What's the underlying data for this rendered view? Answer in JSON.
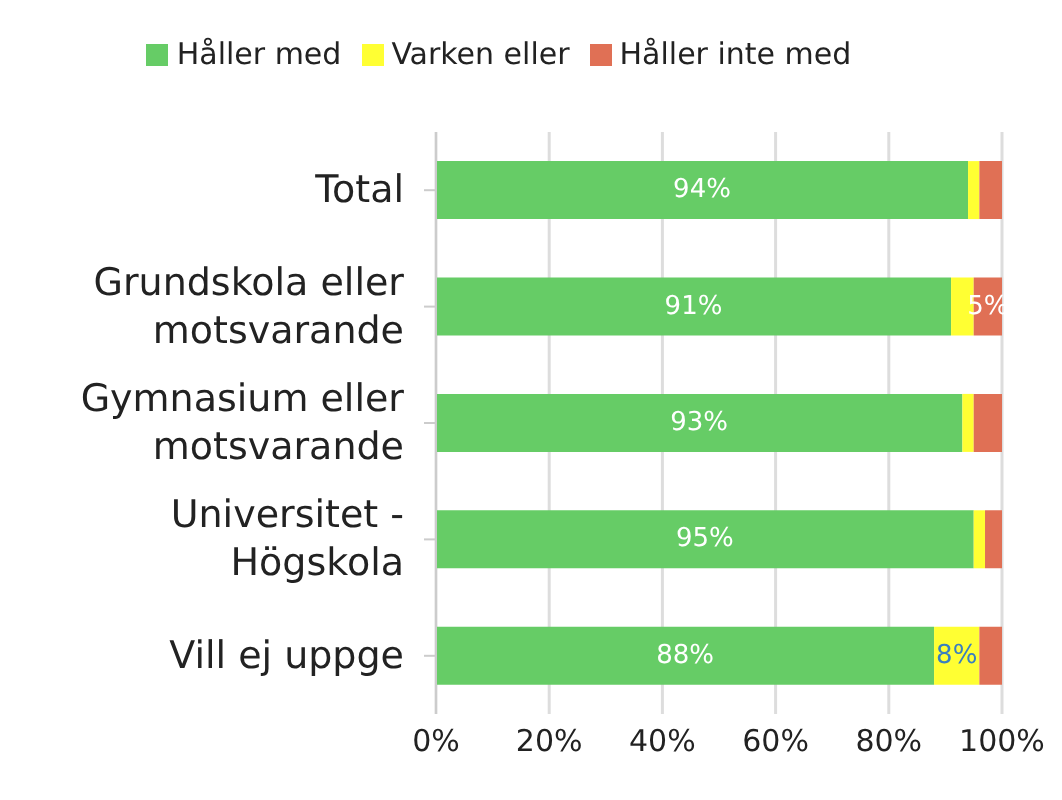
{
  "chart_data": {
    "type": "bar",
    "orientation": "horizontal",
    "stacked": true,
    "categories": [
      "Total",
      "Grundskola eller motsvarande",
      "Gymnasium eller motsvarande",
      "Universitet - Högskola",
      "Vill ej uppge"
    ],
    "series": [
      {
        "name": "Håller med",
        "color": "#66cc66",
        "values": [
          94,
          91,
          93,
          95,
          88
        ],
        "value_labels": [
          "94%",
          "91%",
          "93%",
          "95%",
          "88%"
        ]
      },
      {
        "name": "Varken eller",
        "color": "#ffff33",
        "values": [
          2,
          4,
          2,
          2,
          8
        ],
        "value_labels": [
          null,
          null,
          null,
          null,
          "8%"
        ]
      },
      {
        "name": "Håller inte med",
        "color": "#e07055",
        "values": [
          4,
          5,
          5,
          3,
          4
        ],
        "value_labels": [
          null,
          "5%",
          null,
          null,
          null
        ]
      }
    ],
    "xlim": [
      0,
      100
    ],
    "xticks": [
      {
        "value": 0,
        "label": "0%"
      },
      {
        "value": 20,
        "label": "20%"
      },
      {
        "value": 40,
        "label": "40%"
      },
      {
        "value": 60,
        "label": "60%"
      },
      {
        "value": 80,
        "label": "80%"
      },
      {
        "value": 100,
        "label": "100%"
      }
    ],
    "grid": "x",
    "legend": "top"
  }
}
